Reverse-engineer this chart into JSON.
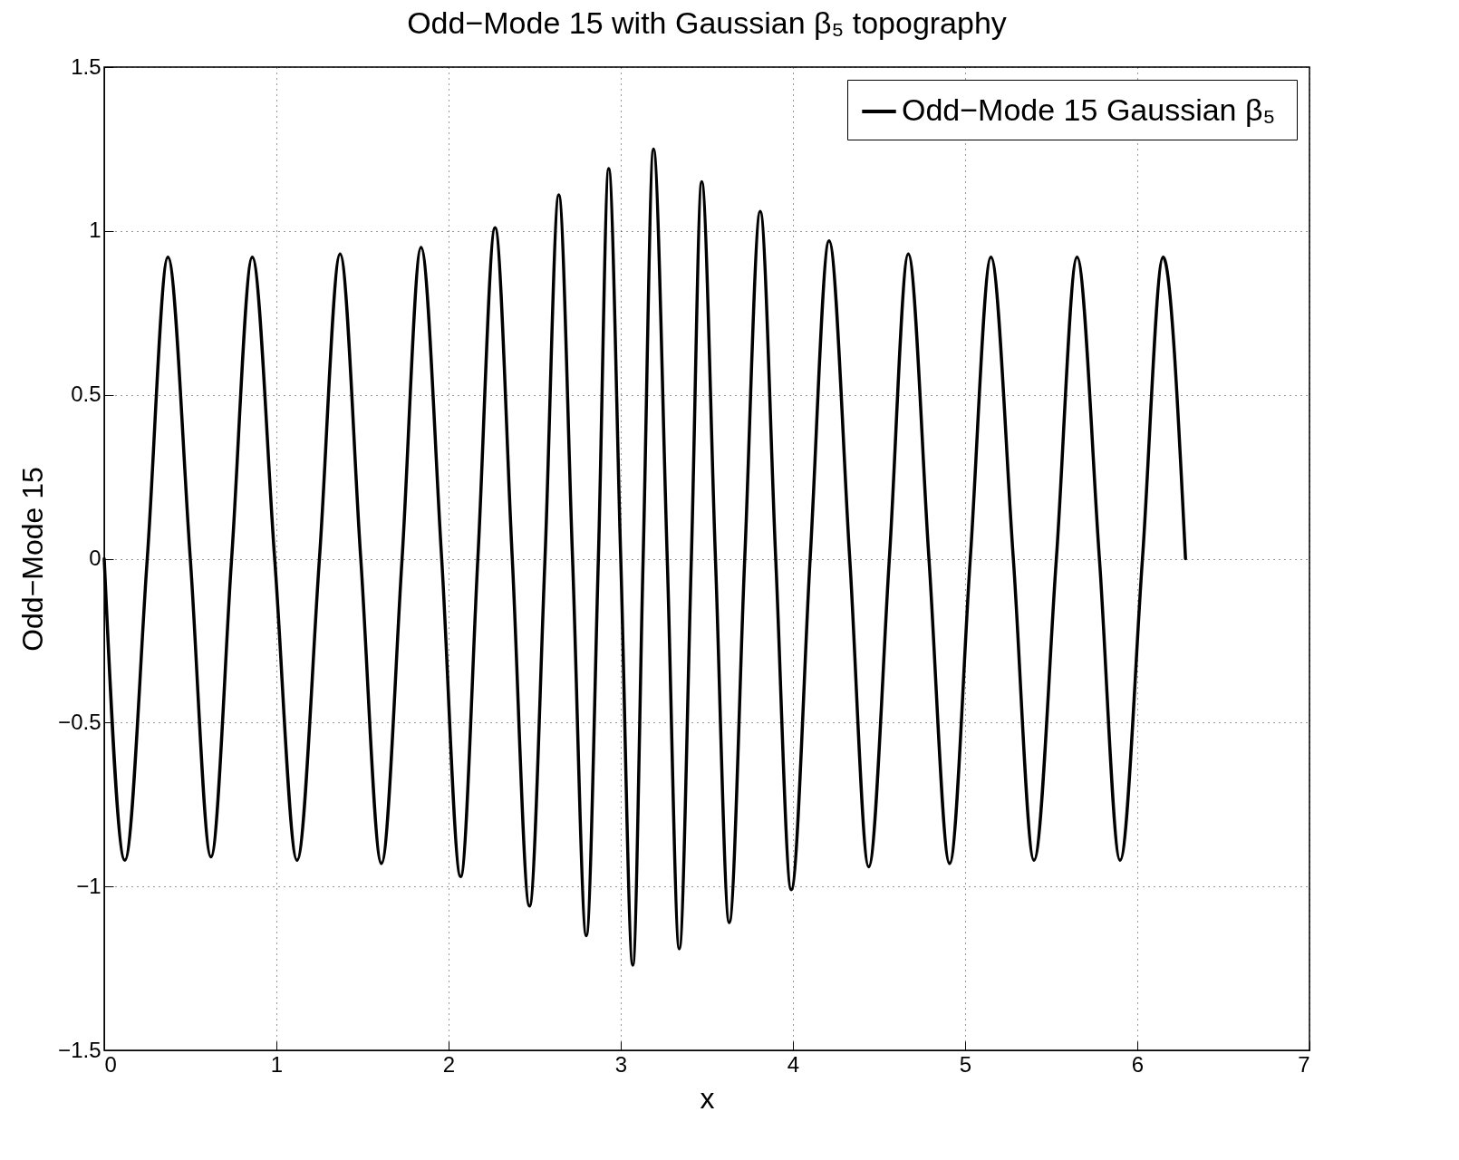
{
  "chart_data": {
    "type": "line",
    "title": "Odd−Mode 15 with Gaussian β₅ topography",
    "xlabel": "x",
    "ylabel": "Odd−Mode 15",
    "x": [
      0,
      0.12,
      0.25,
      0.37,
      0.5,
      0.62,
      0.74,
      0.86,
      0.99,
      1.12,
      1.25,
      1.37,
      1.49,
      1.61,
      1.73,
      1.84,
      1.96,
      2.07,
      2.17,
      2.27,
      2.37,
      2.47,
      2.56,
      2.64,
      2.72,
      2.8,
      2.87,
      2.93,
      3.0,
      3.07,
      3.13,
      3.19,
      3.27,
      3.34,
      3.41,
      3.47,
      3.55,
      3.63,
      3.72,
      3.81,
      3.9,
      3.99,
      4.1,
      4.21,
      4.33,
      4.44,
      4.56,
      4.67,
      4.79,
      4.91,
      5.03,
      5.15,
      5.28,
      5.4,
      5.53,
      5.65,
      5.78,
      5.9,
      6.03,
      6.15,
      6.28
    ],
    "series": [
      {
        "name": "Odd−Mode 15  Gaussian β₅",
        "color": "#000000",
        "values": [
          0,
          -0.92,
          0,
          0.92,
          0,
          -0.91,
          0,
          0.92,
          0,
          -0.92,
          0,
          0.93,
          0,
          -0.93,
          0,
          0.95,
          0,
          -0.97,
          0,
          1.01,
          0,
          -1.06,
          0,
          1.11,
          0,
          -1.15,
          0,
          1.19,
          0,
          -1.24,
          0,
          1.25,
          0,
          -1.19,
          0,
          1.15,
          0,
          -1.11,
          0,
          1.06,
          0,
          -1.01,
          0,
          0.97,
          0,
          -0.94,
          0,
          0.93,
          0,
          -0.93,
          0,
          0.92,
          0,
          -0.92,
          0,
          0.92,
          0,
          -0.92,
          0,
          0.92,
          0
        ]
      }
    ],
    "xlim": [
      0,
      7
    ],
    "xticks": [
      0,
      1,
      2,
      3,
      4,
      5,
      6,
      7
    ],
    "ylim": [
      -1.5,
      1.5
    ],
    "yticks": [
      -1.5,
      -1,
      -0.5,
      0,
      0.5,
      1,
      1.5
    ],
    "grid": true,
    "legend": "top right",
    "marker": "none",
    "line_style": "solid"
  }
}
